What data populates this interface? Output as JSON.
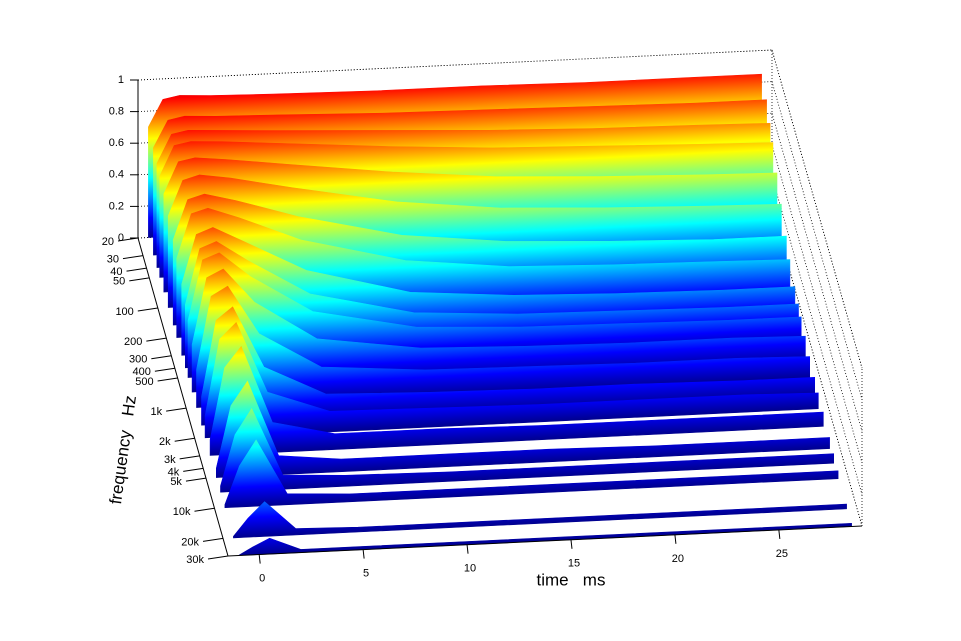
{
  "chart_data": {
    "type": "waterfall",
    "xlabel": "time   ms",
    "ylabel": "frequency   Hz",
    "xlim": [
      -1.5,
      29
    ],
    "xticks": [
      0,
      5,
      10,
      15,
      20,
      25
    ],
    "ylim": [
      20,
      30000
    ],
    "yscale": "log",
    "yticks": [
      20,
      30,
      40,
      50,
      100,
      200,
      300,
      400,
      500,
      {
        "value": 1000,
        "label": "1k"
      },
      {
        "value": 2000,
        "label": "2k"
      },
      {
        "value": 3000,
        "label": "3k"
      },
      {
        "value": 4000,
        "label": "4k"
      },
      {
        "value": 5000,
        "label": "5k"
      },
      {
        "value": 10000,
        "label": "10k"
      },
      {
        "value": 20000,
        "label": "20k"
      },
      {
        "value": 30000,
        "label": "30k"
      }
    ],
    "zlim": [
      0,
      1
    ],
    "zticks": [
      0,
      0.2,
      0.4,
      0.6,
      0.8,
      1
    ],
    "colormap": [
      "#00008f",
      "#0000ff",
      "#00ffff",
      "#ffff00",
      "#ff0000",
      "#800000"
    ],
    "x": [
      -1,
      -0.3,
      0.5,
      2,
      5,
      10,
      15,
      20,
      25,
      28.5
    ],
    "series": [
      {
        "frequency": 20,
        "values": [
          0.7,
          0.87,
          0.89,
          0.88,
          0.87,
          0.86,
          0.86,
          0.85,
          0.85,
          0.85
        ]
      },
      {
        "frequency": 30,
        "values": [
          0.68,
          0.85,
          0.87,
          0.86,
          0.85,
          0.83,
          0.82,
          0.81,
          0.8,
          0.8
        ]
      },
      {
        "frequency": 40,
        "values": [
          0.66,
          0.84,
          0.86,
          0.85,
          0.83,
          0.8,
          0.77,
          0.75,
          0.74,
          0.73
        ]
      },
      {
        "frequency": 50,
        "values": [
          0.64,
          0.83,
          0.85,
          0.84,
          0.81,
          0.76,
          0.72,
          0.7,
          0.68,
          0.67
        ]
      },
      {
        "frequency": 70,
        "values": [
          0.62,
          0.82,
          0.84,
          0.82,
          0.77,
          0.69,
          0.63,
          0.6,
          0.58,
          0.57
        ]
      },
      {
        "frequency": 100,
        "values": [
          0.58,
          0.8,
          0.83,
          0.8,
          0.72,
          0.6,
          0.53,
          0.5,
          0.48,
          0.47
        ]
      },
      {
        "frequency": 150,
        "values": [
          0.54,
          0.79,
          0.82,
          0.77,
          0.65,
          0.5,
          0.43,
          0.4,
          0.38,
          0.38
        ]
      },
      {
        "frequency": 200,
        "values": [
          0.5,
          0.78,
          0.81,
          0.74,
          0.58,
          0.42,
          0.35,
          0.33,
          0.32,
          0.31
        ]
      },
      {
        "frequency": 300,
        "values": [
          0.45,
          0.76,
          0.8,
          0.7,
          0.5,
          0.33,
          0.28,
          0.26,
          0.25,
          0.25
        ]
      },
      {
        "frequency": 400,
        "values": [
          0.4,
          0.75,
          0.79,
          0.66,
          0.43,
          0.28,
          0.24,
          0.23,
          0.22,
          0.22
        ]
      },
      {
        "frequency": 500,
        "values": [
          0.36,
          0.74,
          0.78,
          0.62,
          0.38,
          0.25,
          0.22,
          0.21,
          0.2,
          0.2
        ]
      },
      {
        "frequency": 700,
        "values": [
          0.3,
          0.72,
          0.77,
          0.55,
          0.3,
          0.21,
          0.19,
          0.18,
          0.18,
          0.17
        ]
      },
      {
        "frequency": 1000,
        "values": [
          0.24,
          0.7,
          0.76,
          0.45,
          0.22,
          0.17,
          0.16,
          0.15,
          0.15,
          0.14
        ]
      },
      {
        "frequency": 1500,
        "values": [
          0.18,
          0.66,
          0.74,
          0.35,
          0.16,
          0.14,
          0.13,
          0.13,
          0.12,
          0.12
        ]
      },
      {
        "frequency": 2000,
        "values": [
          0.14,
          0.62,
          0.72,
          0.27,
          0.13,
          0.12,
          0.11,
          0.11,
          0.11,
          0.1
        ]
      },
      {
        "frequency": 3000,
        "values": [
          0.1,
          0.55,
          0.68,
          0.19,
          0.1,
          0.1,
          0.09,
          0.09,
          0.09,
          0.09
        ]
      },
      {
        "frequency": 5000,
        "values": [
          0.06,
          0.45,
          0.6,
          0.12,
          0.08,
          0.08,
          0.08,
          0.07,
          0.07,
          0.07
        ]
      },
      {
        "frequency": 7000,
        "values": [
          0.04,
          0.36,
          0.52,
          0.09,
          0.07,
          0.06,
          0.06,
          0.06,
          0.06,
          0.06
        ]
      },
      {
        "frequency": 10000,
        "values": [
          0.02,
          0.26,
          0.42,
          0.07,
          0.05,
          0.05,
          0.05,
          0.05,
          0.05,
          0.05
        ]
      },
      {
        "frequency": 20000,
        "values": [
          0.01,
          0.12,
          0.22,
          0.04,
          0.03,
          0.03,
          0.03,
          0.03,
          0.03,
          0.03
        ]
      },
      {
        "frequency": 30000,
        "values": [
          0.0,
          0.05,
          0.1,
          0.02,
          0.02,
          0.02,
          0.02,
          0.02,
          0.02,
          0.02
        ]
      }
    ]
  }
}
